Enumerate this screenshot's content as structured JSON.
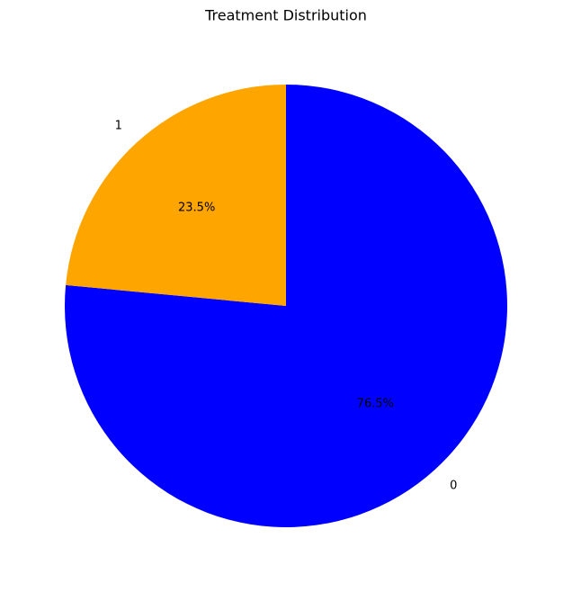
{
  "chart_data": {
    "type": "pie",
    "title": "Treatment Distribution",
    "categories": [
      "0",
      "1"
    ],
    "values": [
      76.5,
      23.5
    ],
    "value_labels": [
      "76.5%",
      "23.5%"
    ],
    "colors": [
      "#0000ff",
      "#ffa500"
    ],
    "start_angle": 90,
    "direction": "clockwise"
  }
}
